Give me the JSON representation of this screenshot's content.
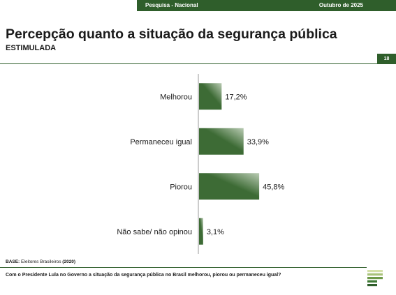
{
  "header": {
    "survey_label": "Pesquisa - Nacional",
    "date_label": "Outubro de 2025",
    "page_number": "18"
  },
  "title": "Percepção quanto a situação da segurança pública",
  "subtitle": "ESTIMULADA",
  "footer": {
    "base_label": "BASE:",
    "base_text": "Eleitores Brasileiros",
    "base_count": "(2020)",
    "question": "Com o Presidente Lula no Governo a situação da segurança pública no Brasil melhorou, piorou ou permaneceu igual?"
  },
  "colors": {
    "accent": "#2f5e2b",
    "bar_dark": "#3d6b35",
    "bar_light": "#b9cbb3"
  },
  "icons": {
    "logo": "brand-logo-icon"
  },
  "chart_data": {
    "type": "bar",
    "orientation": "horizontal",
    "categories": [
      "Melhorou",
      "Permaneceu igual",
      "Piorou",
      "Não sabe/ não opinou"
    ],
    "values": [
      17.2,
      33.9,
      45.8,
      3.1
    ],
    "value_labels": [
      "17,2%",
      "33,9%",
      "45,8%",
      "3,1%"
    ],
    "title": "",
    "xlabel": "",
    "ylabel": "",
    "xlim": [
      0,
      100
    ],
    "grid": false,
    "legend": "none"
  }
}
